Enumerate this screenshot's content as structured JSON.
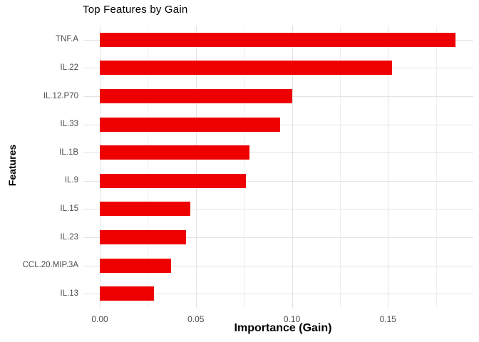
{
  "chart_data": {
    "type": "bar",
    "orientation": "horizontal",
    "title": "Top Features by Gain",
    "xlabel": "Importance (Gain)",
    "ylabel": "Features",
    "categories": [
      "TNF.A",
      "IL.22",
      "IL.12.P70",
      "IL.33",
      "IL.1B",
      "IL.9",
      "IL.15",
      "IL.23",
      "CCL.20.MIP.3A",
      "IL.13"
    ],
    "values": [
      0.185,
      0.152,
      0.1,
      0.094,
      0.078,
      0.076,
      0.047,
      0.045,
      0.037,
      0.028
    ],
    "x_ticks": [
      {
        "value": 0.0,
        "label": "0.00"
      },
      {
        "value": 0.05,
        "label": "0.05"
      },
      {
        "value": 0.1,
        "label": "0.10"
      },
      {
        "value": 0.15,
        "label": "0.15"
      }
    ],
    "x_minor_ticks": [
      0.025,
      0.075,
      0.125,
      0.175
    ],
    "xlim": [
      -0.0095,
      0.1945
    ],
    "legend": "none",
    "grid": "on",
    "colors": {
      "bar": "#EE0000",
      "grid_major": "#E3E3E3",
      "grid_minor": "#EFEFEF",
      "tick_label": "#4D4D4D",
      "text": "#000000",
      "background": "#FFFFFF"
    }
  }
}
